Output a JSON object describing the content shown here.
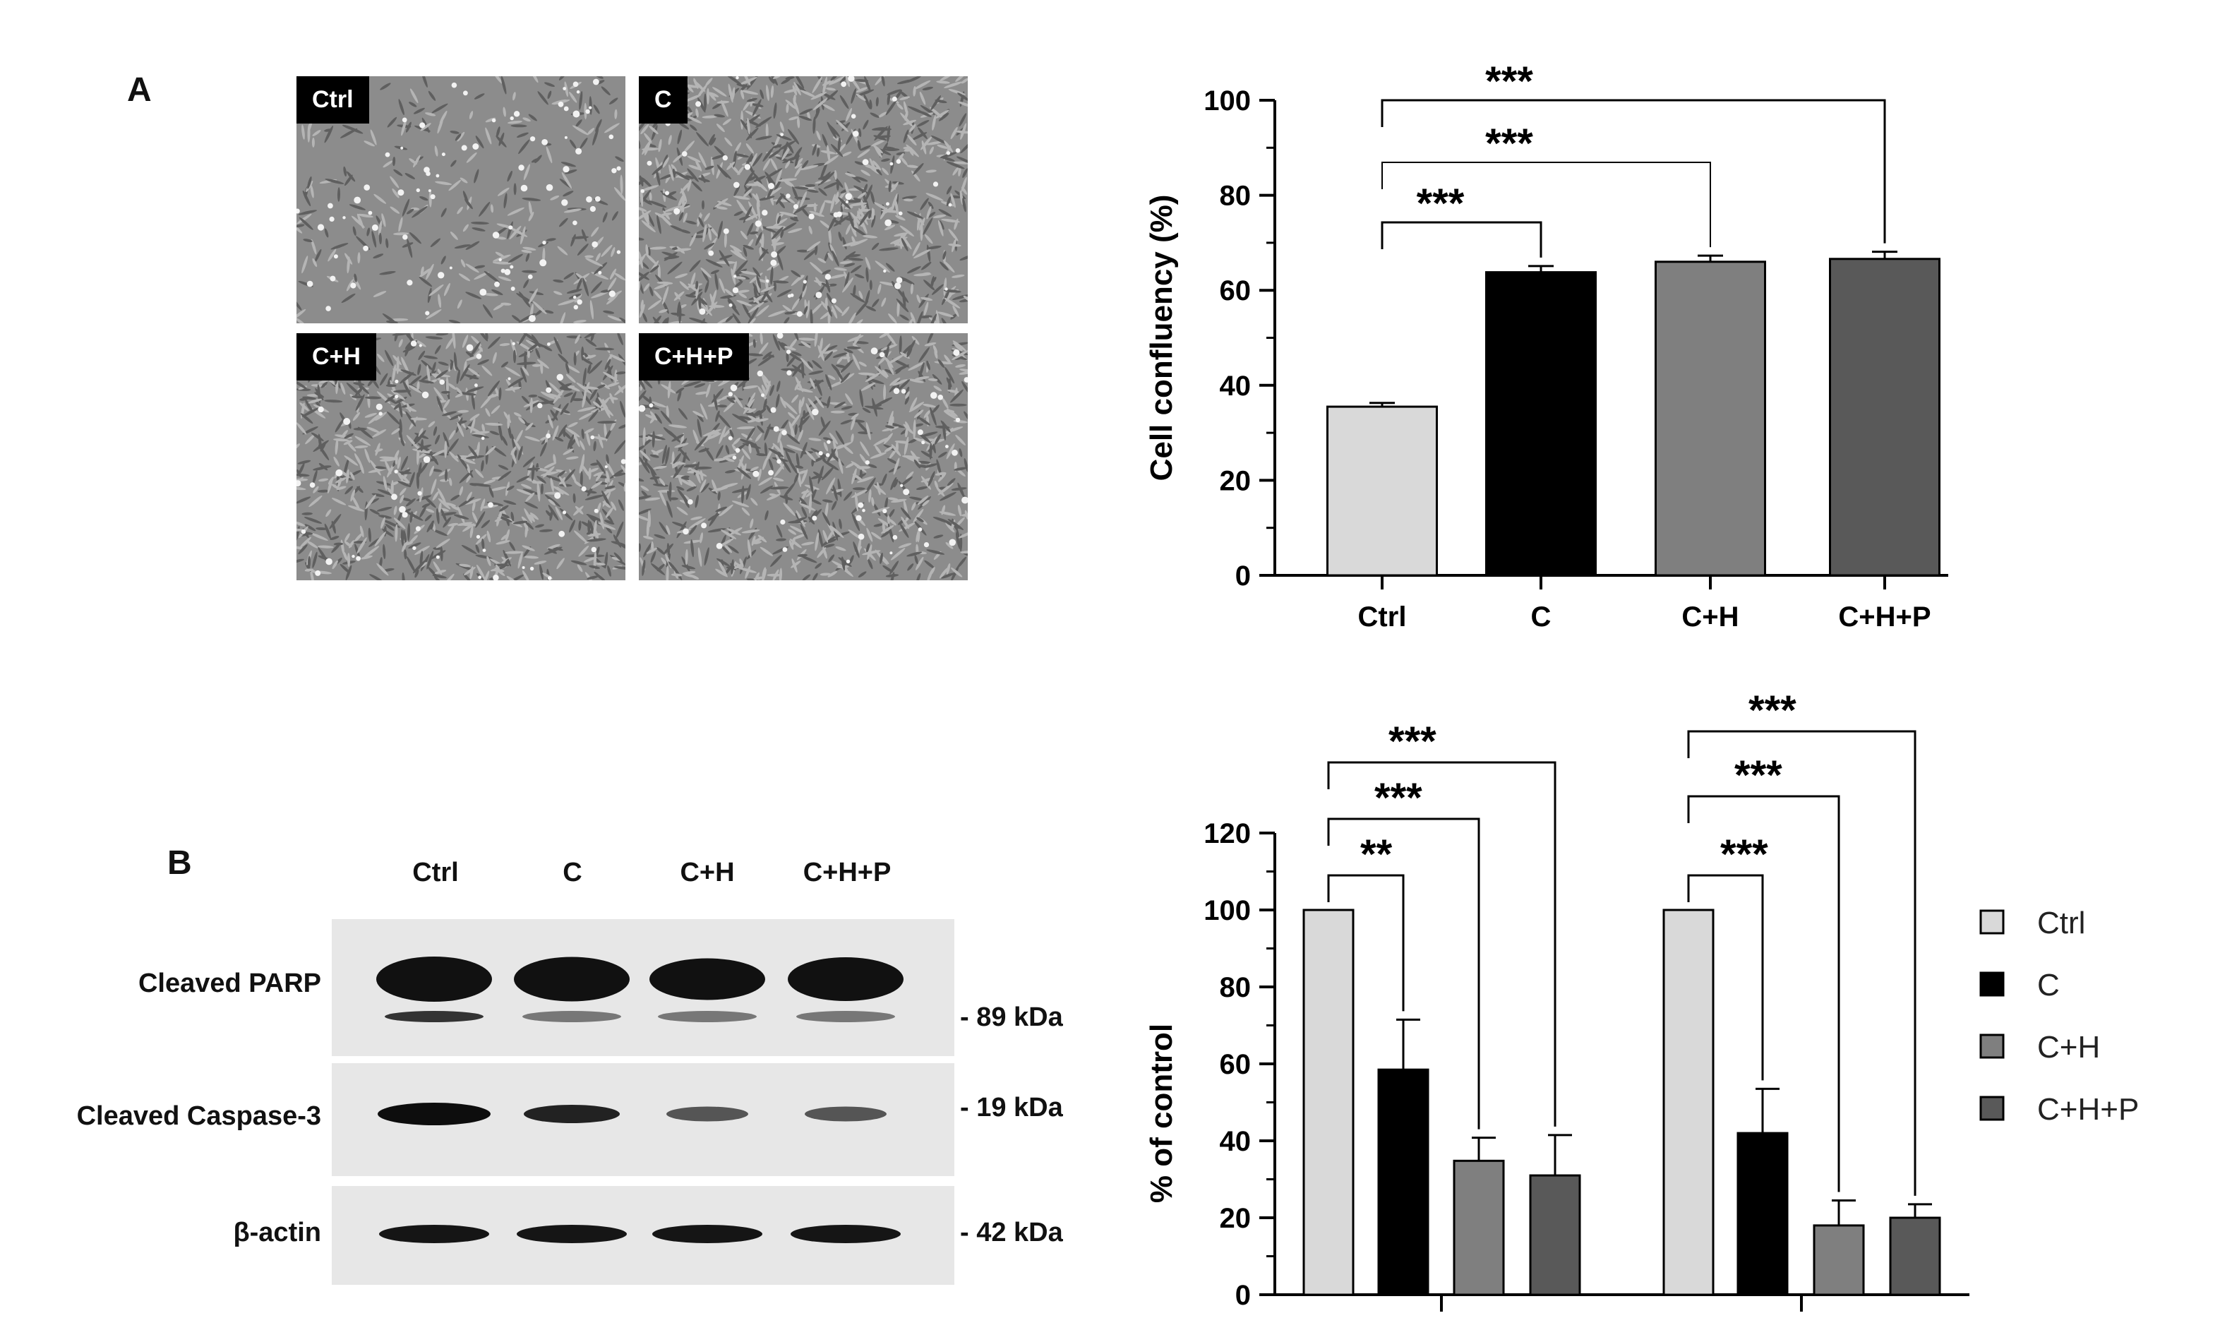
{
  "panel_a": {
    "letter": "A",
    "micrographs": [
      {
        "label": "Ctrl",
        "density": 0.35
      },
      {
        "label": "C",
        "density": 1.0
      },
      {
        "label": "C+H",
        "density": 1.0
      },
      {
        "label": "C+H+P",
        "density": 1.0
      }
    ]
  },
  "panel_b": {
    "letter": "B",
    "lanes": [
      "Ctrl",
      "C",
      "C+H",
      "C+H+P"
    ],
    "blots": [
      {
        "name": "Cleaved PARP",
        "kda": "- 89 kDa"
      },
      {
        "name": "Cleaved Caspase-3",
        "kda": "- 19 kDa"
      },
      {
        "name": "β-actin",
        "kda": "- 42 kDa"
      }
    ]
  },
  "chart_data": [
    {
      "type": "bar",
      "categories": [
        "Ctrl",
        "C",
        "C+H",
        "C+H+P"
      ],
      "values": [
        35.5,
        63.8,
        66.0,
        66.6
      ],
      "errors": [
        0.8,
        1.3,
        1.3,
        1.5
      ],
      "ylabel": "Cell confluency (%)",
      "ylim": [
        0,
        100
      ],
      "yticks": [
        0,
        20,
        40,
        60,
        80,
        100
      ],
      "colors": [
        "#d9d9d9",
        "#000000",
        "#7f7f7f",
        "#595959"
      ],
      "significance": [
        {
          "from": 0,
          "to": 1,
          "label": "***"
        },
        {
          "from": 0,
          "to": 2,
          "label": "***"
        },
        {
          "from": 0,
          "to": 3,
          "label": "***"
        }
      ]
    },
    {
      "type": "bar",
      "groups": 2,
      "series": [
        {
          "name": "Ctrl",
          "values": [
            100,
            100
          ],
          "errors": [
            0,
            0
          ],
          "color": "#d9d9d9"
        },
        {
          "name": "C",
          "values": [
            58.5,
            42.0
          ],
          "errors": [
            13,
            11.5
          ],
          "color": "#000000"
        },
        {
          "name": "C+H",
          "values": [
            34.8,
            18.0
          ],
          "errors": [
            6,
            6.5
          ],
          "color": "#7f7f7f"
        },
        {
          "name": "C+H+P",
          "values": [
            31.0,
            20.0
          ],
          "errors": [
            10.5,
            3.5
          ],
          "color": "#595959"
        }
      ],
      "ylabel": "% of control",
      "ylim": [
        0,
        120
      ],
      "yticks": [
        0,
        20,
        40,
        60,
        80,
        100,
        120
      ],
      "legend": "right",
      "significance": [
        {
          "group": 0,
          "to": 1,
          "label": "**"
        },
        {
          "group": 0,
          "to": 2,
          "label": "***"
        },
        {
          "group": 0,
          "to": 3,
          "label": "***"
        },
        {
          "group": 1,
          "to": 1,
          "label": "***"
        },
        {
          "group": 1,
          "to": 2,
          "label": "***"
        },
        {
          "group": 1,
          "to": 3,
          "label": "***"
        }
      ]
    }
  ]
}
